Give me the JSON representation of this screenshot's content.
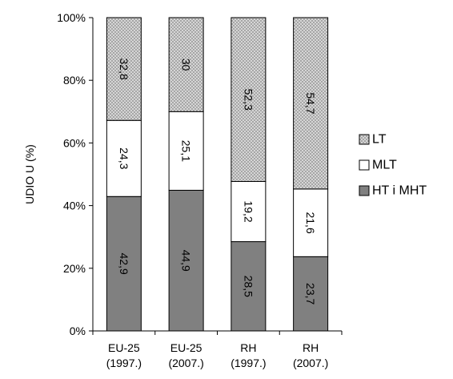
{
  "chart_data": {
    "type": "bar",
    "stacked": true,
    "percent": true,
    "ylabel": "UDIO U (%)",
    "xlabel": "",
    "ylim": [
      0,
      100
    ],
    "yticks": [
      "0%",
      "20%",
      "40%",
      "60%",
      "80%",
      "100%"
    ],
    "grid": false,
    "legend_position": "right",
    "categories": [
      [
        "EU-25",
        "(1997.)"
      ],
      [
        "EU-25",
        "(2007.)"
      ],
      [
        "RH",
        "(1997.)"
      ],
      [
        "RH",
        "(2007.)"
      ]
    ],
    "series": [
      {
        "name": "HT i MHT",
        "values": [
          42.9,
          44.9,
          28.5,
          23.7
        ],
        "labels": [
          "42,9",
          "44,9",
          "28,5",
          "23,7"
        ],
        "fill": "#808080",
        "pattern": "solid"
      },
      {
        "name": "MLT",
        "values": [
          24.3,
          25.1,
          19.2,
          21.6
        ],
        "labels": [
          "24,3",
          "25,1",
          "19,2",
          "21,6"
        ],
        "fill": "#ffffff",
        "pattern": "solid"
      },
      {
        "name": "LT",
        "values": [
          32.8,
          30,
          52.3,
          54.7
        ],
        "labels": [
          "32,8",
          "30",
          "52,3",
          "54,7"
        ],
        "fill": "#d9d9d9",
        "pattern": "crosshatch"
      }
    ],
    "legend_order": [
      "LT",
      "MLT",
      "HT i MHT"
    ]
  }
}
